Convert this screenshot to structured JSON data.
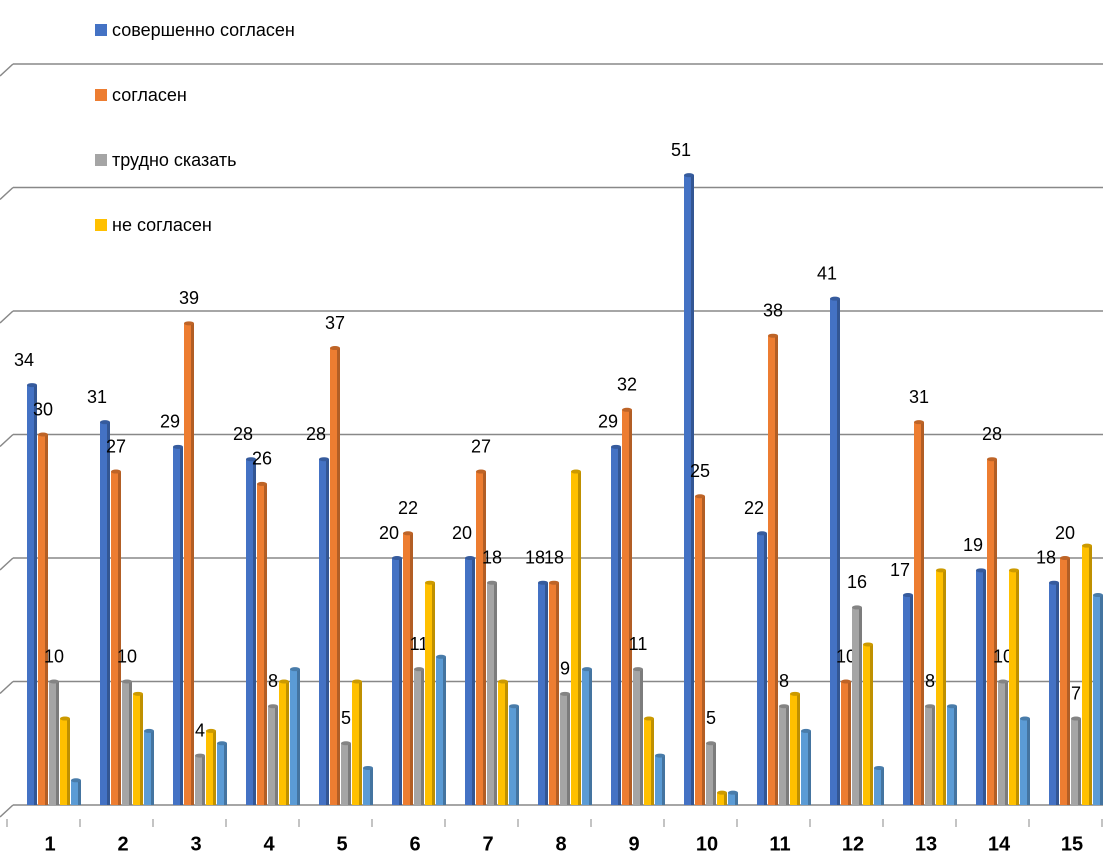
{
  "chart_data": {
    "type": "bar",
    "categories": [
      "1",
      "2",
      "3",
      "4",
      "5",
      "6",
      "7",
      "8",
      "9",
      "10",
      "11",
      "12",
      "13",
      "14",
      "15"
    ],
    "series": [
      {
        "name": "совершенно согласен",
        "color": "#4472c4",
        "show_labels": true,
        "values": [
          34,
          31,
          29,
          28,
          28,
          20,
          20,
          18,
          29,
          51,
          22,
          41,
          17,
          19,
          18
        ]
      },
      {
        "name": "согласен",
        "color": "#ed7d31",
        "show_labels": true,
        "values": [
          30,
          27,
          39,
          26,
          37,
          22,
          27,
          18,
          32,
          25,
          38,
          10,
          31,
          28,
          20
        ]
      },
      {
        "name": "трудно сказать",
        "color": "#a5a5a5",
        "show_labels": true,
        "values": [
          10,
          10,
          4,
          8,
          5,
          11,
          18,
          9,
          11,
          5,
          8,
          16,
          8,
          10,
          7
        ]
      },
      {
        "name": "не согласен",
        "color": "#ffc000",
        "show_labels": false,
        "values": [
          7,
          9,
          6,
          10,
          10,
          18,
          10,
          27,
          7,
          1,
          9,
          13,
          19,
          19,
          21
        ]
      },
      {
        "color": "#5b9bd5",
        "show_labels": false,
        "values": [
          2,
          6,
          5,
          11,
          3,
          12,
          8,
          11,
          4,
          1,
          6,
          3,
          8,
          7,
          17
        ]
      }
    ],
    "ylim": [
      0,
      60
    ],
    "yticks": [
      0,
      10,
      20,
      30,
      40,
      50,
      60
    ],
    "grid": true,
    "legend": "top-left"
  }
}
